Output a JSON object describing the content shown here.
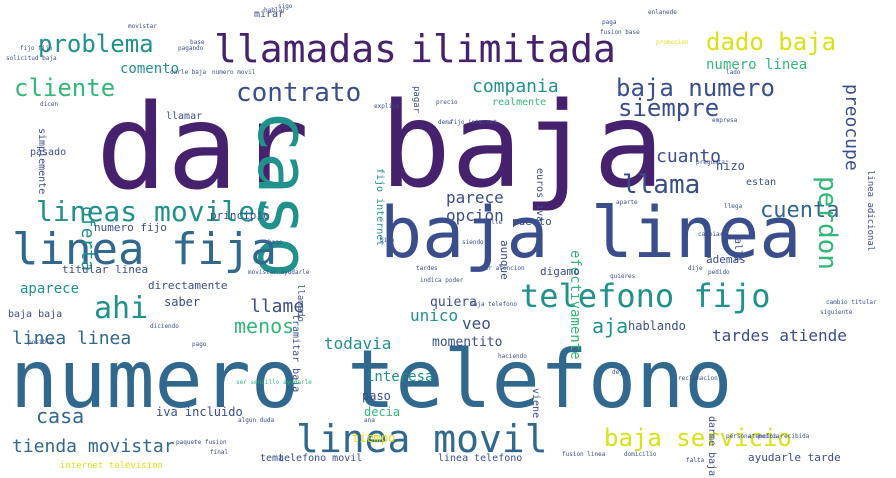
{
  "palette": {
    "purple": "#46226e",
    "indigo": "#3b4e8c",
    "blue": "#31688e",
    "teal": "#21918c",
    "green": "#35b779",
    "lime": "#90d743",
    "yellow": "#d8e219"
  },
  "words": [
    {
      "text": "dar",
      "size": 118,
      "color": "purple"
    },
    {
      "text": "baja",
      "size": 118,
      "color": "purple"
    },
    {
      "text": "numero telefono",
      "size": 80,
      "color": "blue"
    },
    {
      "text": "baja linea",
      "size": 70,
      "color": "indigo"
    },
    {
      "text": "caso",
      "size": 70,
      "color": "teal",
      "rot": true
    },
    {
      "text": "linea fija",
      "size": 44,
      "color": "blue"
    },
    {
      "text": "llamadas",
      "size": 38,
      "color": "purple"
    },
    {
      "text": "ilimitada",
      "size": 38,
      "color": "purple"
    },
    {
      "text": "linea movil",
      "size": 38,
      "color": "blue"
    },
    {
      "text": "telefono fijo",
      "size": 32,
      "color": "teal"
    },
    {
      "text": "lineas moviles",
      "size": 28,
      "color": "teal"
    },
    {
      "text": "ahi",
      "size": 30,
      "color": "teal"
    },
    {
      "text": "contrato",
      "size": 26,
      "color": "indigo"
    },
    {
      "text": "problema",
      "size": 24,
      "color": "teal"
    },
    {
      "text": "cliente",
      "size": 24,
      "color": "green"
    },
    {
      "text": "baja numero",
      "size": 24,
      "color": "indigo"
    },
    {
      "text": "dado baja",
      "size": 24,
      "color": "yellow"
    },
    {
      "text": "siempre",
      "size": 24,
      "color": "indigo"
    },
    {
      "text": "llama",
      "size": 26,
      "color": "indigo"
    },
    {
      "text": "cuenta",
      "size": 22,
      "color": "blue"
    },
    {
      "text": "perdon",
      "size": 26,
      "color": "green",
      "rot": true
    },
    {
      "text": "baja servicio",
      "size": 24,
      "color": "yellow"
    },
    {
      "text": "menos",
      "size": 20,
      "color": "green"
    },
    {
      "text": "casa",
      "size": 20,
      "color": "blue"
    },
    {
      "text": "tienda movistar",
      "size": 18,
      "color": "blue"
    },
    {
      "text": "linea linea",
      "size": 18,
      "color": "blue"
    },
    {
      "text": "llame",
      "size": 18,
      "color": "indigo"
    },
    {
      "text": "cuanto",
      "size": 18,
      "color": "indigo"
    },
    {
      "text": "aja",
      "size": 20,
      "color": "teal"
    },
    {
      "text": "tardes atiende",
      "size": 16,
      "color": "indigo"
    },
    {
      "text": "compania",
      "size": 18,
      "color": "teal"
    },
    {
      "text": "preocupe",
      "size": 18,
      "color": "indigo",
      "rot": true
    },
    {
      "text": "oferta",
      "size": 18,
      "color": "teal",
      "rot": true
    },
    {
      "text": "parece",
      "size": 16,
      "color": "indigo"
    },
    {
      "text": "opcion",
      "size": 16,
      "color": "indigo"
    },
    {
      "text": "todavia",
      "size": 16,
      "color": "teal"
    },
    {
      "text": "unico",
      "size": 16,
      "color": "teal"
    },
    {
      "text": "veo",
      "size": 16,
      "color": "indigo"
    },
    {
      "text": "aparece",
      "size": 14,
      "color": "teal"
    },
    {
      "text": "numero linea",
      "size": 14,
      "color": "green"
    },
    {
      "text": "comento",
      "size": 14,
      "color": "teal"
    },
    {
      "text": "efectivamente",
      "size": 14,
      "color": "green",
      "rot": true
    },
    {
      "text": "interesa",
      "size": 14,
      "color": "teal"
    },
    {
      "text": "momentito",
      "size": 13,
      "color": "indigo"
    },
    {
      "text": "quiera",
      "size": 13,
      "color": "indigo"
    },
    {
      "text": "hablando",
      "size": 12,
      "color": "indigo"
    },
    {
      "text": "iva incluido",
      "size": 12,
      "color": "indigo"
    },
    {
      "text": "decia",
      "size": 12,
      "color": "green"
    },
    {
      "text": "paso",
      "size": 12,
      "color": "indigo"
    },
    {
      "text": "tiempo",
      "size": 12,
      "color": "yellow"
    },
    {
      "text": "saber",
      "size": 12,
      "color": "indigo"
    },
    {
      "text": "directamente",
      "size": 11,
      "color": "indigo"
    },
    {
      "text": "titular linea",
      "size": 11,
      "color": "indigo"
    },
    {
      "text": "numero fijo",
      "size": 11,
      "color": "indigo"
    },
    {
      "text": "principio",
      "size": 11,
      "color": "indigo"
    },
    {
      "text": "ademas",
      "size": 11,
      "color": "indigo"
    },
    {
      "text": "digamo",
      "size": 11,
      "color": "indigo"
    },
    {
      "text": "puesto",
      "size": 11,
      "color": "indigo"
    },
    {
      "text": "hizo",
      "size": 12,
      "color": "indigo"
    },
    {
      "text": "estan",
      "size": 10,
      "color": "indigo"
    },
    {
      "text": "baja baja",
      "size": 10,
      "color": "indigo"
    },
    {
      "text": "pasado",
      "size": 10,
      "color": "indigo"
    },
    {
      "text": "simplemente",
      "size": 10,
      "color": "indigo",
      "rot": true
    },
    {
      "text": "llamar",
      "size": 10,
      "color": "indigo"
    },
    {
      "text": "mirar",
      "size": 10,
      "color": "indigo"
    },
    {
      "text": "darme baja",
      "size": 10,
      "color": "indigo",
      "rot": true
    },
    {
      "text": "ayudarle tarde",
      "size": 11,
      "color": "indigo"
    },
    {
      "text": "telefono movil",
      "size": 10,
      "color": "indigo"
    },
    {
      "text": "linea telefono",
      "size": 10,
      "color": "indigo"
    },
    {
      "text": "tema",
      "size": 10,
      "color": "indigo"
    },
    {
      "text": "internet television",
      "size": 9,
      "color": "yellow"
    },
    {
      "text": "viene",
      "size": 10,
      "color": "indigo",
      "rot": true
    },
    {
      "text": "realmente",
      "size": 10,
      "color": "green"
    },
    {
      "text": "aunque",
      "size": 11,
      "color": "indigo",
      "rot": true
    },
    {
      "text": "euros iva",
      "size": 10,
      "color": "indigo",
      "rot": true
    },
    {
      "text": "fijo internet",
      "size": 10,
      "color": "teal",
      "rot": true
    },
    {
      "text": "llamado",
      "size": 9,
      "color": "indigo",
      "rot": true
    },
    {
      "text": "tramitar baja",
      "size": 10,
      "color": "indigo",
      "rot": true
    },
    {
      "text": "linea adicional",
      "size": 9,
      "color": "indigo",
      "rot": true
    },
    {
      "text": "alli",
      "size": 10,
      "color": "indigo",
      "rot": true
    },
    {
      "text": "pagar",
      "size": 9,
      "color": "indigo",
      "rot": true
    },
    {
      "text": "cambio titular",
      "size": 6,
      "color": "indigo"
    },
    {
      "text": "siguiente",
      "size": 6,
      "color": "indigo"
    },
    {
      "text": "solicitud baja",
      "size": 6,
      "color": "indigo"
    },
    {
      "text": "darle baja",
      "size": 6,
      "color": "indigo"
    },
    {
      "text": "numero movil",
      "size": 6,
      "color": "indigo"
    },
    {
      "text": "movistar ayudarle",
      "size": 6,
      "color": "indigo"
    },
    {
      "text": "algun duda",
      "size": 6,
      "color": "indigo"
    },
    {
      "text": "paquete fusion",
      "size": 6,
      "color": "indigo"
    },
    {
      "text": "atencion recibida",
      "size": 6,
      "color": "indigo"
    },
    {
      "text": "diciendo",
      "size": 6,
      "color": "indigo"
    },
    {
      "text": "reclamacion",
      "size": 6,
      "color": "indigo"
    },
    {
      "text": "pedido",
      "size": 6,
      "color": "indigo"
    },
    {
      "text": "quieres",
      "size": 6,
      "color": "indigo"
    },
    {
      "text": "fijo internet",
      "size": 6,
      "color": "indigo"
    },
    {
      "text": "empresa",
      "size": 6,
      "color": "indigo"
    },
    {
      "text": "pregunta",
      "size": 6,
      "color": "indigo"
    },
    {
      "text": "explico",
      "size": 6,
      "color": "indigo"
    },
    {
      "text": "precio",
      "size": 6,
      "color": "indigo"
    },
    {
      "text": "fusion base",
      "size": 6,
      "color": "indigo"
    },
    {
      "text": "pagando",
      "size": 6,
      "color": "indigo"
    },
    {
      "text": "pago",
      "size": 6,
      "color": "indigo"
    },
    {
      "text": "persona",
      "size": 6,
      "color": "indigo"
    },
    {
      "text": "podria",
      "size": 6,
      "color": "indigo"
    },
    {
      "text": "fusion linea",
      "size": 6,
      "color": "indigo"
    },
    {
      "text": "domicilio",
      "size": 6,
      "color": "indigo"
    },
    {
      "text": "falta",
      "size": 6,
      "color": "indigo"
    },
    {
      "text": "deja",
      "size": 6,
      "color": "indigo"
    },
    {
      "text": "dije",
      "size": 6,
      "color": "indigo"
    },
    {
      "text": "calle",
      "size": 6,
      "color": "indigo"
    },
    {
      "text": "siendo",
      "size": 6,
      "color": "indigo"
    },
    {
      "text": "tardes",
      "size": 6,
      "color": "indigo"
    },
    {
      "text": "indica poder",
      "size": 6,
      "color": "indigo"
    },
    {
      "text": "saber atencion",
      "size": 6,
      "color": "indigo"
    },
    {
      "text": "baja telefono",
      "size": 6,
      "color": "indigo"
    },
    {
      "text": "ana",
      "size": 6,
      "color": "indigo"
    },
    {
      "text": "base",
      "size": 6,
      "color": "indigo"
    },
    {
      "text": "dicen",
      "size": 6,
      "color": "indigo"
    },
    {
      "text": "lado",
      "size": 6,
      "color": "indigo"
    },
    {
      "text": "llega",
      "size": 6,
      "color": "indigo"
    },
    {
      "text": "final",
      "size": 6,
      "color": "indigo"
    },
    {
      "text": "posible",
      "size": 6,
      "color": "indigo"
    },
    {
      "text": "cambiar",
      "size": 6,
      "color": "indigo"
    },
    {
      "text": "movistar",
      "size": 6,
      "color": "indigo"
    },
    {
      "text": "bien",
      "size": 6,
      "color": "indigo"
    },
    {
      "text": "sigo",
      "size": 6,
      "color": "indigo"
    },
    {
      "text": "fijo fijo",
      "size": 6,
      "color": "indigo"
    },
    {
      "text": "hablar",
      "size": 6,
      "color": "indigo"
    },
    {
      "text": "enlanede",
      "size": 6,
      "color": "indigo"
    },
    {
      "text": "promocion",
      "size": 6,
      "color": "yellow"
    },
    {
      "text": "paga",
      "size": 6,
      "color": "indigo"
    },
    {
      "text": "dema",
      "size": 6,
      "color": "indigo"
    },
    {
      "text": "haciendo",
      "size": 6,
      "color": "indigo"
    },
    {
      "text": "aparte",
      "size": 6,
      "color": "indigo"
    },
    {
      "text": "hago",
      "size": 6,
      "color": "indigo"
    },
    {
      "text": "ser sencillo ayudarle",
      "size": 6,
      "color": "green"
    }
  ]
}
